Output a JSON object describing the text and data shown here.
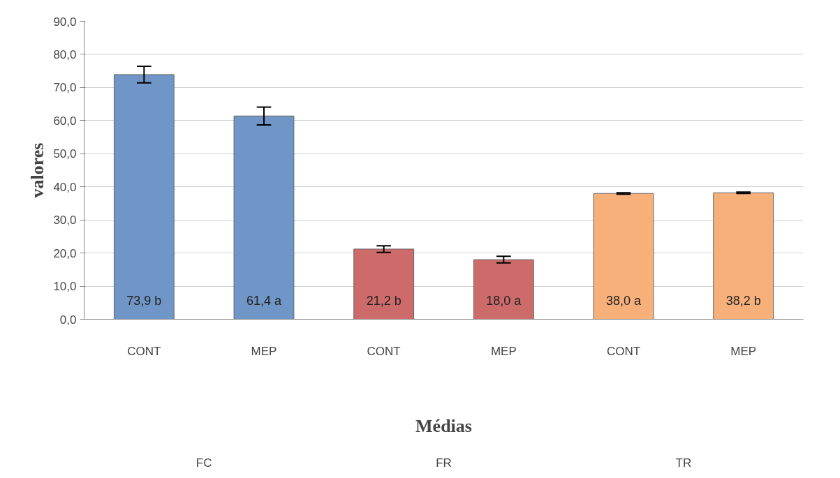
{
  "chart_data": {
    "type": "bar",
    "xlabel": "Médias",
    "ylabel": "valores",
    "categories": [
      "CONT",
      "MEP",
      "CONT",
      "MEP",
      "CONT",
      "MEP"
    ],
    "values": [
      73.9,
      61.4,
      21.2,
      18.0,
      38.0,
      38.2
    ],
    "colors": [
      "#7096c8",
      "#7096c8",
      "#cd6b6b",
      "#cd6b6b",
      "#f7b07a",
      "#f7b07a"
    ],
    "errors": [
      2.5,
      2.7,
      1.0,
      1.0,
      0.2,
      0.2
    ],
    "value_labels": [
      "73,9 b",
      "61,4 a",
      "21,2 b",
      "18,0 a",
      "38,0 a",
      "38,2 b"
    ],
    "annotations": [
      "FC",
      "FR",
      "TR"
    ],
    "ylim": [
      0,
      90
    ],
    "yticks": [
      {
        "value": 0,
        "label": "0,0"
      },
      {
        "value": 10,
        "label": "10,0"
      },
      {
        "value": 20,
        "label": "20,0"
      },
      {
        "value": 30,
        "label": "30,0"
      },
      {
        "value": 40,
        "label": "40,0"
      },
      {
        "value": 50,
        "label": "50,0"
      },
      {
        "value": 60,
        "label": "60,0"
      },
      {
        "value": 70,
        "label": "70,0"
      },
      {
        "value": 80,
        "label": "80,0"
      },
      {
        "value": 90,
        "label": "90,0"
      }
    ],
    "grid": "y"
  }
}
